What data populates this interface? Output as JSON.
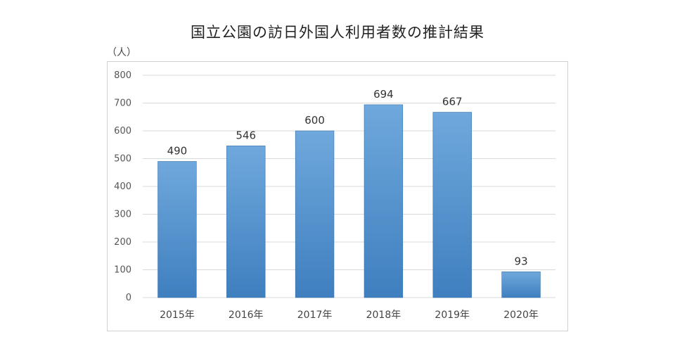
{
  "chart_data": {
    "type": "bar",
    "title": "国立公園の訪日外国人利用者数の推計結果",
    "ylabel": "（人）",
    "xlabel": "",
    "categories": [
      "2015年",
      "2016年",
      "2017年",
      "2018年",
      "2019年",
      "2020年"
    ],
    "values": [
      490,
      546,
      600,
      694,
      667,
      93
    ],
    "data_labels": [
      "490",
      "546",
      "600",
      "694",
      "667",
      "93"
    ],
    "ylim": [
      0,
      800
    ],
    "yticks": [
      0,
      100,
      200,
      300,
      400,
      500,
      600,
      700,
      800
    ],
    "ytick_labels": [
      "0",
      "100",
      "200",
      "300",
      "400",
      "500",
      "600",
      "700",
      "800"
    ],
    "grid": true,
    "legend": "none",
    "bar_color": "#5b9bd5",
    "bar_color_light": "#6fa8dc",
    "bar_color_dark": "#3f7fbf",
    "grid_color": "#d9d9d9"
  }
}
